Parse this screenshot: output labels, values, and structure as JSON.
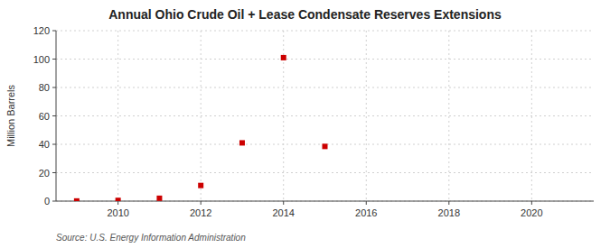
{
  "chart_data": {
    "type": "scatter",
    "title": "Annual Ohio Crude Oil + Lease Condensate Reserves Extensions",
    "ylabel": "Million Barrels",
    "annotations": [
      "Source: U.S. Energy Information Administration"
    ],
    "x": [
      2009,
      2010,
      2011,
      2012,
      2013,
      2014,
      2015
    ],
    "values": [
      0.1,
      0.5,
      2.0,
      11.0,
      41.0,
      101.0,
      38.5
    ],
    "color": "#cc0000",
    "marker": "square",
    "xlim": [
      2008.5,
      2021.5
    ],
    "ylim": [
      0,
      120
    ],
    "xticks": [
      2010,
      2012,
      2014,
      2016,
      2018,
      2020
    ],
    "yticks": [
      0,
      20,
      40,
      60,
      80,
      100,
      120
    ],
    "grid": true
  }
}
